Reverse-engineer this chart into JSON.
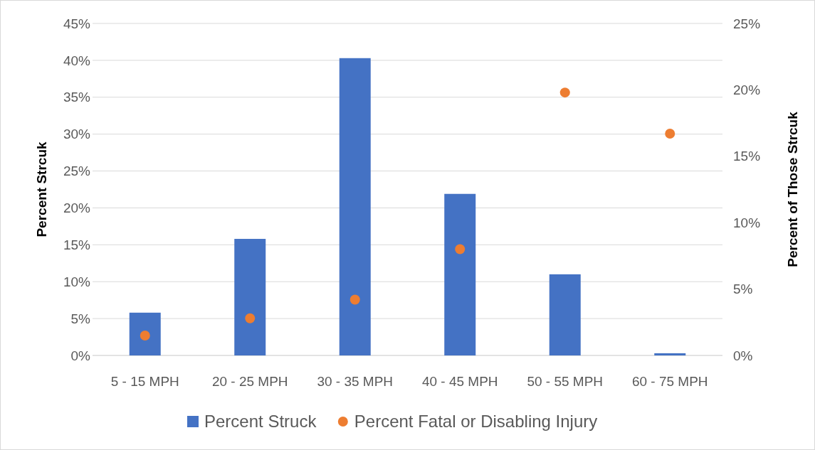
{
  "chart_data": {
    "type": "bar",
    "categories": [
      "5 - 15 MPH",
      "20 - 25 MPH",
      "30 - 35 MPH",
      "40 - 45 MPH",
      "50 - 55 MPH",
      "60 - 75 MPH"
    ],
    "series": [
      {
        "name": "Percent Struck",
        "color": "#4472c4",
        "values": [
          5.8,
          15.8,
          40.3,
          21.9,
          11.0,
          0.3
        ]
      },
      {
        "name": "Percent Fatal or Disabling Injury",
        "type": "scatter",
        "axis": "y2",
        "color": "#ed7d31",
        "values": [
          1.5,
          2.8,
          4.2,
          8.0,
          19.8,
          16.7
        ]
      }
    ],
    "ylabel": "Percent Strcuk",
    "y2label": "Percent of Those Strcuk",
    "ylim": [
      0,
      45
    ],
    "yticks": [
      {
        "value": 0,
        "label": "0%"
      },
      {
        "value": 5,
        "label": "5%"
      },
      {
        "value": 10,
        "label": "10%"
      },
      {
        "value": 15,
        "label": "15%"
      },
      {
        "value": 20,
        "label": "20%"
      },
      {
        "value": 25,
        "label": "25%"
      },
      {
        "value": 30,
        "label": "30%"
      },
      {
        "value": 35,
        "label": "35%"
      },
      {
        "value": 40,
        "label": "40%"
      },
      {
        "value": 45,
        "label": "45%"
      }
    ],
    "y2lim": [
      0,
      25
    ],
    "y2ticks": [
      {
        "value": 0,
        "label": "0%"
      },
      {
        "value": 5,
        "label": "5%"
      },
      {
        "value": 10,
        "label": "10%"
      },
      {
        "value": 15,
        "label": "15%"
      },
      {
        "value": 20,
        "label": "20%"
      },
      {
        "value": 25,
        "label": "25%"
      }
    ],
    "grid": "y",
    "legend": "bottom",
    "marker": "circle"
  }
}
